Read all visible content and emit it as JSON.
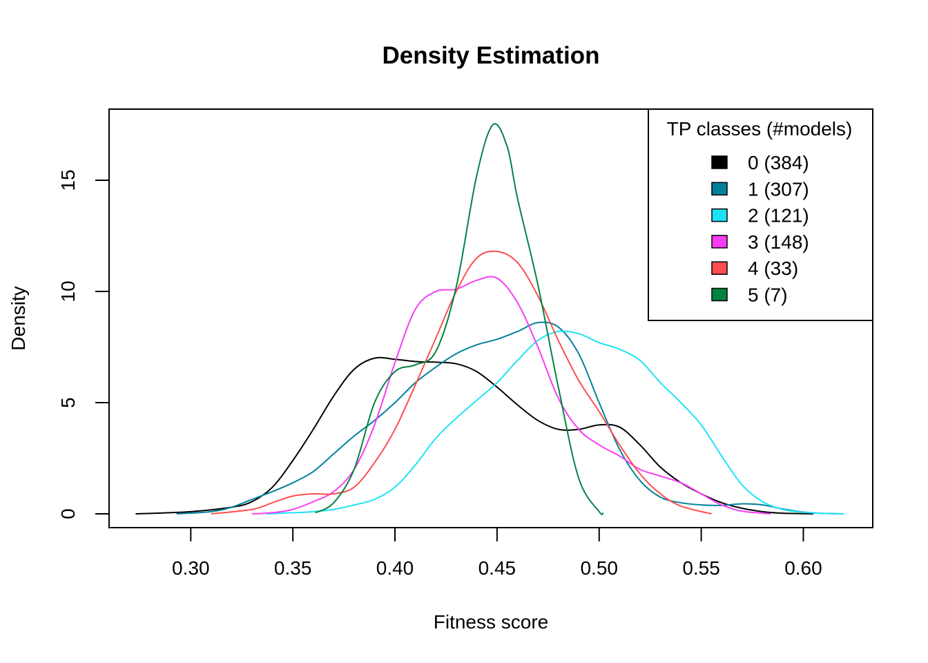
{
  "chart_data": {
    "type": "line",
    "title": "Density Estimation",
    "xlabel": "Fitness score",
    "ylabel": "Density",
    "xlim": [
      0.26,
      0.634
    ],
    "ylim": [
      -0.62,
      18.2
    ],
    "x_ticks": [
      0.3,
      0.35,
      0.4,
      0.45,
      0.5,
      0.55,
      0.6
    ],
    "x_tick_labels": [
      "0.30",
      "0.35",
      "0.40",
      "0.45",
      "0.50",
      "0.55",
      "0.60"
    ],
    "y_ticks": [
      0,
      5,
      10,
      15
    ],
    "y_tick_labels": [
      "0",
      "5",
      "10",
      "15"
    ],
    "grid": false,
    "legend": {
      "title": "TP classes (#models)",
      "position": "top-right",
      "entries": [
        "0 (384)",
        "1 (307)",
        "2 (121)",
        "3 (148)",
        "4 (33)",
        "5 (7)"
      ]
    },
    "series": [
      {
        "name": "0 (384)",
        "color": "#000000",
        "points": [
          [
            0.273,
            0.0
          ],
          [
            0.3,
            0.1
          ],
          [
            0.32,
            0.3
          ],
          [
            0.33,
            0.55
          ],
          [
            0.34,
            1.2
          ],
          [
            0.35,
            2.4
          ],
          [
            0.36,
            3.8
          ],
          [
            0.37,
            5.3
          ],
          [
            0.38,
            6.5
          ],
          [
            0.39,
            7.0
          ],
          [
            0.4,
            6.95
          ],
          [
            0.41,
            6.85
          ],
          [
            0.42,
            6.82
          ],
          [
            0.43,
            6.75
          ],
          [
            0.44,
            6.4
          ],
          [
            0.45,
            5.7
          ],
          [
            0.46,
            4.9
          ],
          [
            0.47,
            4.2
          ],
          [
            0.48,
            3.8
          ],
          [
            0.49,
            3.8
          ],
          [
            0.5,
            4.0
          ],
          [
            0.51,
            3.9
          ],
          [
            0.52,
            3.1
          ],
          [
            0.53,
            2.1
          ],
          [
            0.54,
            1.4
          ],
          [
            0.55,
            0.9
          ],
          [
            0.56,
            0.5
          ],
          [
            0.57,
            0.25
          ],
          [
            0.58,
            0.1
          ],
          [
            0.59,
            0.03
          ],
          [
            0.605,
            0.0
          ]
        ]
      },
      {
        "name": "1 (307)",
        "color": "#00809C",
        "points": [
          [
            0.293,
            0.0
          ],
          [
            0.31,
            0.1
          ],
          [
            0.32,
            0.3
          ],
          [
            0.33,
            0.65
          ],
          [
            0.34,
            1.0
          ],
          [
            0.35,
            1.4
          ],
          [
            0.36,
            1.9
          ],
          [
            0.37,
            2.7
          ],
          [
            0.38,
            3.5
          ],
          [
            0.39,
            4.2
          ],
          [
            0.4,
            5.0
          ],
          [
            0.41,
            5.9
          ],
          [
            0.42,
            6.6
          ],
          [
            0.43,
            7.2
          ],
          [
            0.44,
            7.6
          ],
          [
            0.45,
            7.85
          ],
          [
            0.46,
            8.2
          ],
          [
            0.47,
            8.6
          ],
          [
            0.48,
            8.4
          ],
          [
            0.49,
            7.2
          ],
          [
            0.5,
            5.0
          ],
          [
            0.51,
            2.9
          ],
          [
            0.52,
            1.5
          ],
          [
            0.53,
            0.75
          ],
          [
            0.54,
            0.5
          ],
          [
            0.55,
            0.4
          ],
          [
            0.56,
            0.38
          ],
          [
            0.57,
            0.45
          ],
          [
            0.58,
            0.4
          ],
          [
            0.59,
            0.22
          ],
          [
            0.6,
            0.08
          ],
          [
            0.61,
            0.02
          ],
          [
            0.62,
            0.0
          ]
        ]
      },
      {
        "name": "2 (121)",
        "color": "#1BE3F5",
        "points": [
          [
            0.337,
            0.0
          ],
          [
            0.35,
            0.05
          ],
          [
            0.36,
            0.1
          ],
          [
            0.37,
            0.2
          ],
          [
            0.38,
            0.4
          ],
          [
            0.39,
            0.65
          ],
          [
            0.4,
            1.2
          ],
          [
            0.41,
            2.2
          ],
          [
            0.42,
            3.4
          ],
          [
            0.43,
            4.3
          ],
          [
            0.44,
            5.1
          ],
          [
            0.45,
            5.9
          ],
          [
            0.46,
            6.9
          ],
          [
            0.47,
            7.8
          ],
          [
            0.48,
            8.2
          ],
          [
            0.49,
            8.1
          ],
          [
            0.5,
            7.7
          ],
          [
            0.51,
            7.4
          ],
          [
            0.52,
            6.9
          ],
          [
            0.53,
            5.9
          ],
          [
            0.54,
            5.0
          ],
          [
            0.55,
            4.0
          ],
          [
            0.56,
            2.6
          ],
          [
            0.57,
            1.3
          ],
          [
            0.58,
            0.55
          ],
          [
            0.59,
            0.2
          ],
          [
            0.6,
            0.07
          ],
          [
            0.61,
            0.02
          ],
          [
            0.62,
            0.0
          ]
        ]
      },
      {
        "name": "3 (148)",
        "color": "#F73BF5",
        "points": [
          [
            0.33,
            0.0
          ],
          [
            0.34,
            0.05
          ],
          [
            0.35,
            0.2
          ],
          [
            0.36,
            0.55
          ],
          [
            0.37,
            1.0
          ],
          [
            0.38,
            2.0
          ],
          [
            0.39,
            4.0
          ],
          [
            0.4,
            6.8
          ],
          [
            0.41,
            9.2
          ],
          [
            0.42,
            10.0
          ],
          [
            0.43,
            10.1
          ],
          [
            0.44,
            10.5
          ],
          [
            0.45,
            10.6
          ],
          [
            0.46,
            9.5
          ],
          [
            0.47,
            7.5
          ],
          [
            0.48,
            5.2
          ],
          [
            0.49,
            3.8
          ],
          [
            0.5,
            3.1
          ],
          [
            0.51,
            2.6
          ],
          [
            0.52,
            2.0
          ],
          [
            0.53,
            1.7
          ],
          [
            0.54,
            1.4
          ],
          [
            0.55,
            0.9
          ],
          [
            0.56,
            0.4
          ],
          [
            0.57,
            0.12
          ],
          [
            0.584,
            0.0
          ]
        ]
      },
      {
        "name": "4 (33)",
        "color": "#FF4D4D",
        "points": [
          [
            0.31,
            0.0
          ],
          [
            0.33,
            0.2
          ],
          [
            0.34,
            0.5
          ],
          [
            0.35,
            0.8
          ],
          [
            0.36,
            0.9
          ],
          [
            0.37,
            0.9
          ],
          [
            0.38,
            1.2
          ],
          [
            0.39,
            2.3
          ],
          [
            0.4,
            3.8
          ],
          [
            0.41,
            5.8
          ],
          [
            0.42,
            7.9
          ],
          [
            0.43,
            10.0
          ],
          [
            0.44,
            11.5
          ],
          [
            0.45,
            11.8
          ],
          [
            0.46,
            11.3
          ],
          [
            0.47,
            9.8
          ],
          [
            0.48,
            7.8
          ],
          [
            0.49,
            6.0
          ],
          [
            0.5,
            4.6
          ],
          [
            0.51,
            3.1
          ],
          [
            0.52,
            1.8
          ],
          [
            0.53,
            0.9
          ],
          [
            0.54,
            0.35
          ],
          [
            0.555,
            0.0
          ]
        ]
      },
      {
        "name": "5 (7)",
        "color": "#008242",
        "points": [
          [
            0.361,
            0.05
          ],
          [
            0.37,
            0.5
          ],
          [
            0.38,
            2.0
          ],
          [
            0.39,
            5.0
          ],
          [
            0.4,
            6.4
          ],
          [
            0.41,
            6.7
          ],
          [
            0.42,
            7.3
          ],
          [
            0.43,
            10.2
          ],
          [
            0.44,
            15.2
          ],
          [
            0.448,
            17.5
          ],
          [
            0.455,
            16.5
          ],
          [
            0.46,
            14.2
          ],
          [
            0.47,
            10.3
          ],
          [
            0.48,
            5.7
          ],
          [
            0.49,
            1.6
          ],
          [
            0.5,
            0.1
          ],
          [
            0.502,
            0.05
          ]
        ]
      }
    ]
  }
}
